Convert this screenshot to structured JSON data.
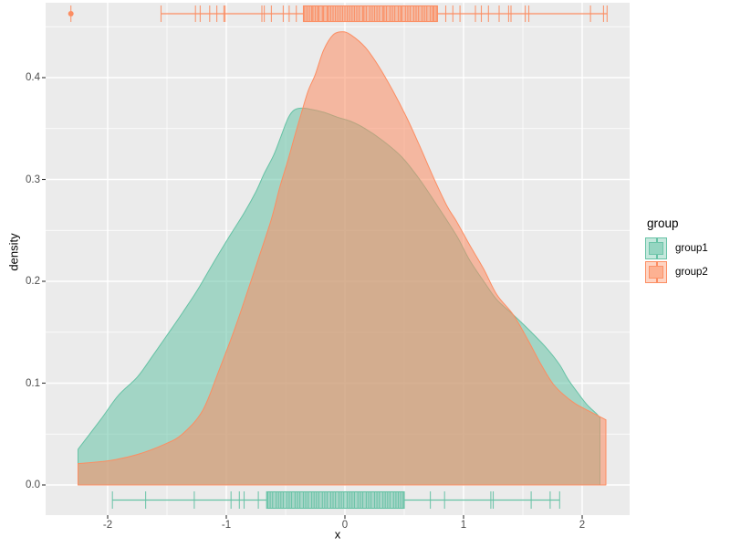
{
  "chart_data": {
    "type": "area",
    "subtype": "density-with-rug-and-boxplot",
    "title": "",
    "xlabel": "x",
    "ylabel": "density",
    "grid": "on",
    "legend": {
      "title": "group",
      "position": "right",
      "entries": [
        {
          "label": "group1",
          "color": "#66C2A5"
        },
        {
          "label": "group2",
          "color": "#FC8D62"
        }
      ]
    },
    "axes": {
      "x": {
        "ticks": [
          -2,
          -1,
          0,
          1,
          2
        ],
        "tick_labels": [
          "-2",
          "-1",
          "0",
          "1",
          "2"
        ],
        "minor_ticks": [
          -1.5,
          -0.5,
          0.5,
          1.5
        ],
        "range": [
          -2.52,
          2.4
        ]
      },
      "y": {
        "ticks": [
          0,
          0.1,
          0.2,
          0.3,
          0.4
        ],
        "tick_labels": [
          "0.0",
          "0.1",
          "0.2",
          "0.3",
          "0.4"
        ],
        "minor_ticks": [
          0.05,
          0.15,
          0.25,
          0.35,
          0.45
        ],
        "range": [
          -0.03,
          0.473
        ]
      }
    },
    "theme": {
      "panel_bg": "#EBEBEB",
      "grid_color": "#FFFFFF",
      "tick_color": "#333333",
      "tick_text_color": "#4D4D4D",
      "axis_title_color": "#000000",
      "fill_alpha": 0.55
    },
    "series": [
      {
        "name": "group1",
        "color": "#66C2A5",
        "rug_side": "bottom",
        "density": [
          [
            -2.25,
            0.035
          ],
          [
            -2.06,
            0.064
          ],
          [
            -1.91,
            0.088
          ],
          [
            -1.75,
            0.106
          ],
          [
            -1.62,
            0.127
          ],
          [
            -1.5,
            0.147
          ],
          [
            -1.37,
            0.169
          ],
          [
            -1.24,
            0.192
          ],
          [
            -1.12,
            0.216
          ],
          [
            -0.98,
            0.243
          ],
          [
            -0.85,
            0.267
          ],
          [
            -0.75,
            0.288
          ],
          [
            -0.68,
            0.306
          ],
          [
            -0.6,
            0.324
          ],
          [
            -0.54,
            0.342
          ],
          [
            -0.48,
            0.36
          ],
          [
            -0.43,
            0.368
          ],
          [
            -0.37,
            0.37
          ],
          [
            -0.29,
            0.369
          ],
          [
            -0.18,
            0.366
          ],
          [
            -0.06,
            0.361
          ],
          [
            0.05,
            0.357
          ],
          [
            0.17,
            0.35
          ],
          [
            0.32,
            0.338
          ],
          [
            0.48,
            0.322
          ],
          [
            0.63,
            0.3
          ],
          [
            0.78,
            0.274
          ],
          [
            0.94,
            0.245
          ],
          [
            1.05,
            0.221
          ],
          [
            1.17,
            0.2
          ],
          [
            1.28,
            0.182
          ],
          [
            1.42,
            0.167
          ],
          [
            1.58,
            0.149
          ],
          [
            1.71,
            0.133
          ],
          [
            1.81,
            0.118
          ],
          [
            1.88,
            0.104
          ],
          [
            1.96,
            0.091
          ],
          [
            2.04,
            0.079
          ],
          [
            2.12,
            0.07
          ],
          [
            2.15,
            0.066
          ]
        ],
        "box": {
          "q1": -0.66,
          "q3": 0.5,
          "lower": -1.96,
          "upper": 1.81,
          "outliers": []
        },
        "rug": [
          -1.96,
          -1.68,
          -1.27,
          -0.96,
          -0.89,
          -0.85,
          -0.73,
          -0.65,
          -0.63,
          -0.61,
          -0.58,
          -0.56,
          -0.54,
          -0.52,
          -0.49,
          -0.47,
          -0.45,
          -0.42,
          -0.4,
          -0.38,
          -0.35,
          -0.33,
          -0.31,
          -0.28,
          -0.26,
          -0.24,
          -0.22,
          -0.19,
          -0.17,
          -0.15,
          -0.12,
          -0.1,
          -0.08,
          -0.05,
          -0.03,
          -0.01,
          0.02,
          0.04,
          0.06,
          0.08,
          0.11,
          0.13,
          0.15,
          0.18,
          0.2,
          0.22,
          0.25,
          0.27,
          0.29,
          0.32,
          0.34,
          0.36,
          0.38,
          0.41,
          0.43,
          0.45,
          0.47,
          0.49,
          0.72,
          0.84,
          1.23,
          1.25,
          1.57,
          1.73,
          1.81
        ]
      },
      {
        "name": "group2",
        "color": "#FC8D62",
        "rug_side": "top",
        "density": [
          [
            -2.25,
            0.021
          ],
          [
            -1.98,
            0.024
          ],
          [
            -1.75,
            0.03
          ],
          [
            -1.52,
            0.04
          ],
          [
            -1.37,
            0.05
          ],
          [
            -1.2,
            0.073
          ],
          [
            -1.06,
            0.113
          ],
          [
            -0.93,
            0.153
          ],
          [
            -0.83,
            0.187
          ],
          [
            -0.73,
            0.222
          ],
          [
            -0.62,
            0.261
          ],
          [
            -0.55,
            0.292
          ],
          [
            -0.48,
            0.319
          ],
          [
            -0.42,
            0.344
          ],
          [
            -0.37,
            0.364
          ],
          [
            -0.31,
            0.387
          ],
          [
            -0.25,
            0.403
          ],
          [
            -0.18,
            0.427
          ],
          [
            -0.1,
            0.442
          ],
          [
            -0.02,
            0.445
          ],
          [
            0.05,
            0.442
          ],
          [
            0.17,
            0.43
          ],
          [
            0.28,
            0.412
          ],
          [
            0.4,
            0.388
          ],
          [
            0.52,
            0.361
          ],
          [
            0.63,
            0.333
          ],
          [
            0.75,
            0.301
          ],
          [
            0.86,
            0.274
          ],
          [
            0.94,
            0.259
          ],
          [
            1.05,
            0.236
          ],
          [
            1.17,
            0.212
          ],
          [
            1.28,
            0.187
          ],
          [
            1.42,
            0.167
          ],
          [
            1.54,
            0.143
          ],
          [
            1.65,
            0.119
          ],
          [
            1.75,
            0.1
          ],
          [
            1.84,
            0.089
          ],
          [
            1.94,
            0.08
          ],
          [
            2.05,
            0.073
          ],
          [
            2.15,
            0.067
          ],
          [
            2.2,
            0.064
          ]
        ],
        "box": {
          "q1": -0.35,
          "q3": 0.78,
          "lower": -1.55,
          "upper": 2.21,
          "outliers": [
            -2.31
          ]
        },
        "rug": [
          -2.31,
          -1.55,
          -1.26,
          -1.22,
          -1.14,
          -1.08,
          -1.02,
          -1.01,
          -0.7,
          -0.68,
          -0.62,
          -0.52,
          -0.47,
          -0.41,
          -0.34,
          -0.32,
          -0.3,
          -0.28,
          -0.27,
          -0.25,
          -0.23,
          -0.22,
          -0.19,
          -0.18,
          -0.15,
          -0.14,
          -0.12,
          -0.1,
          -0.08,
          -0.06,
          -0.04,
          -0.02,
          0.0,
          0.02,
          0.04,
          0.06,
          0.08,
          0.1,
          0.12,
          0.15,
          0.16,
          0.18,
          0.21,
          0.23,
          0.25,
          0.27,
          0.29,
          0.32,
          0.33,
          0.35,
          0.38,
          0.4,
          0.42,
          0.45,
          0.47,
          0.48,
          0.51,
          0.53,
          0.55,
          0.58,
          0.6,
          0.62,
          0.65,
          0.67,
          0.69,
          0.72,
          0.74,
          0.75,
          0.77,
          0.85,
          0.91,
          0.97,
          1.1,
          1.15,
          1.21,
          1.3,
          1.38,
          1.4,
          1.52,
          1.55,
          2.07,
          2.18,
          2.21
        ]
      }
    ]
  }
}
